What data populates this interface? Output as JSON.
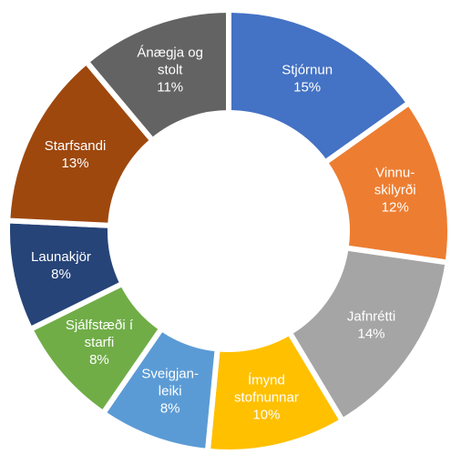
{
  "chart_data": {
    "type": "donut",
    "categories": [
      "Stjórnun",
      "Vinnu-\nskilyrði",
      "Jafnrétti",
      "Ímynd\nstofnunnar",
      "Sveigjan-\nleiki",
      "Sjálfstæði í\nstarfi",
      "Launakjör",
      "Starfsandi",
      "Ánægja og\nstolt"
    ],
    "values": [
      15,
      12,
      14,
      10,
      8,
      8,
      8,
      13,
      11
    ],
    "value_labels": [
      "15%",
      "12%",
      "14%",
      "10%",
      "8%",
      "8%",
      "8%",
      "13%",
      "11%"
    ],
    "colors": [
      "#4472c4",
      "#ed7d31",
      "#a5a5a5",
      "#ffc000",
      "#5b9bd5",
      "#70ad47",
      "#264478",
      "#9e480e",
      "#636363"
    ]
  }
}
